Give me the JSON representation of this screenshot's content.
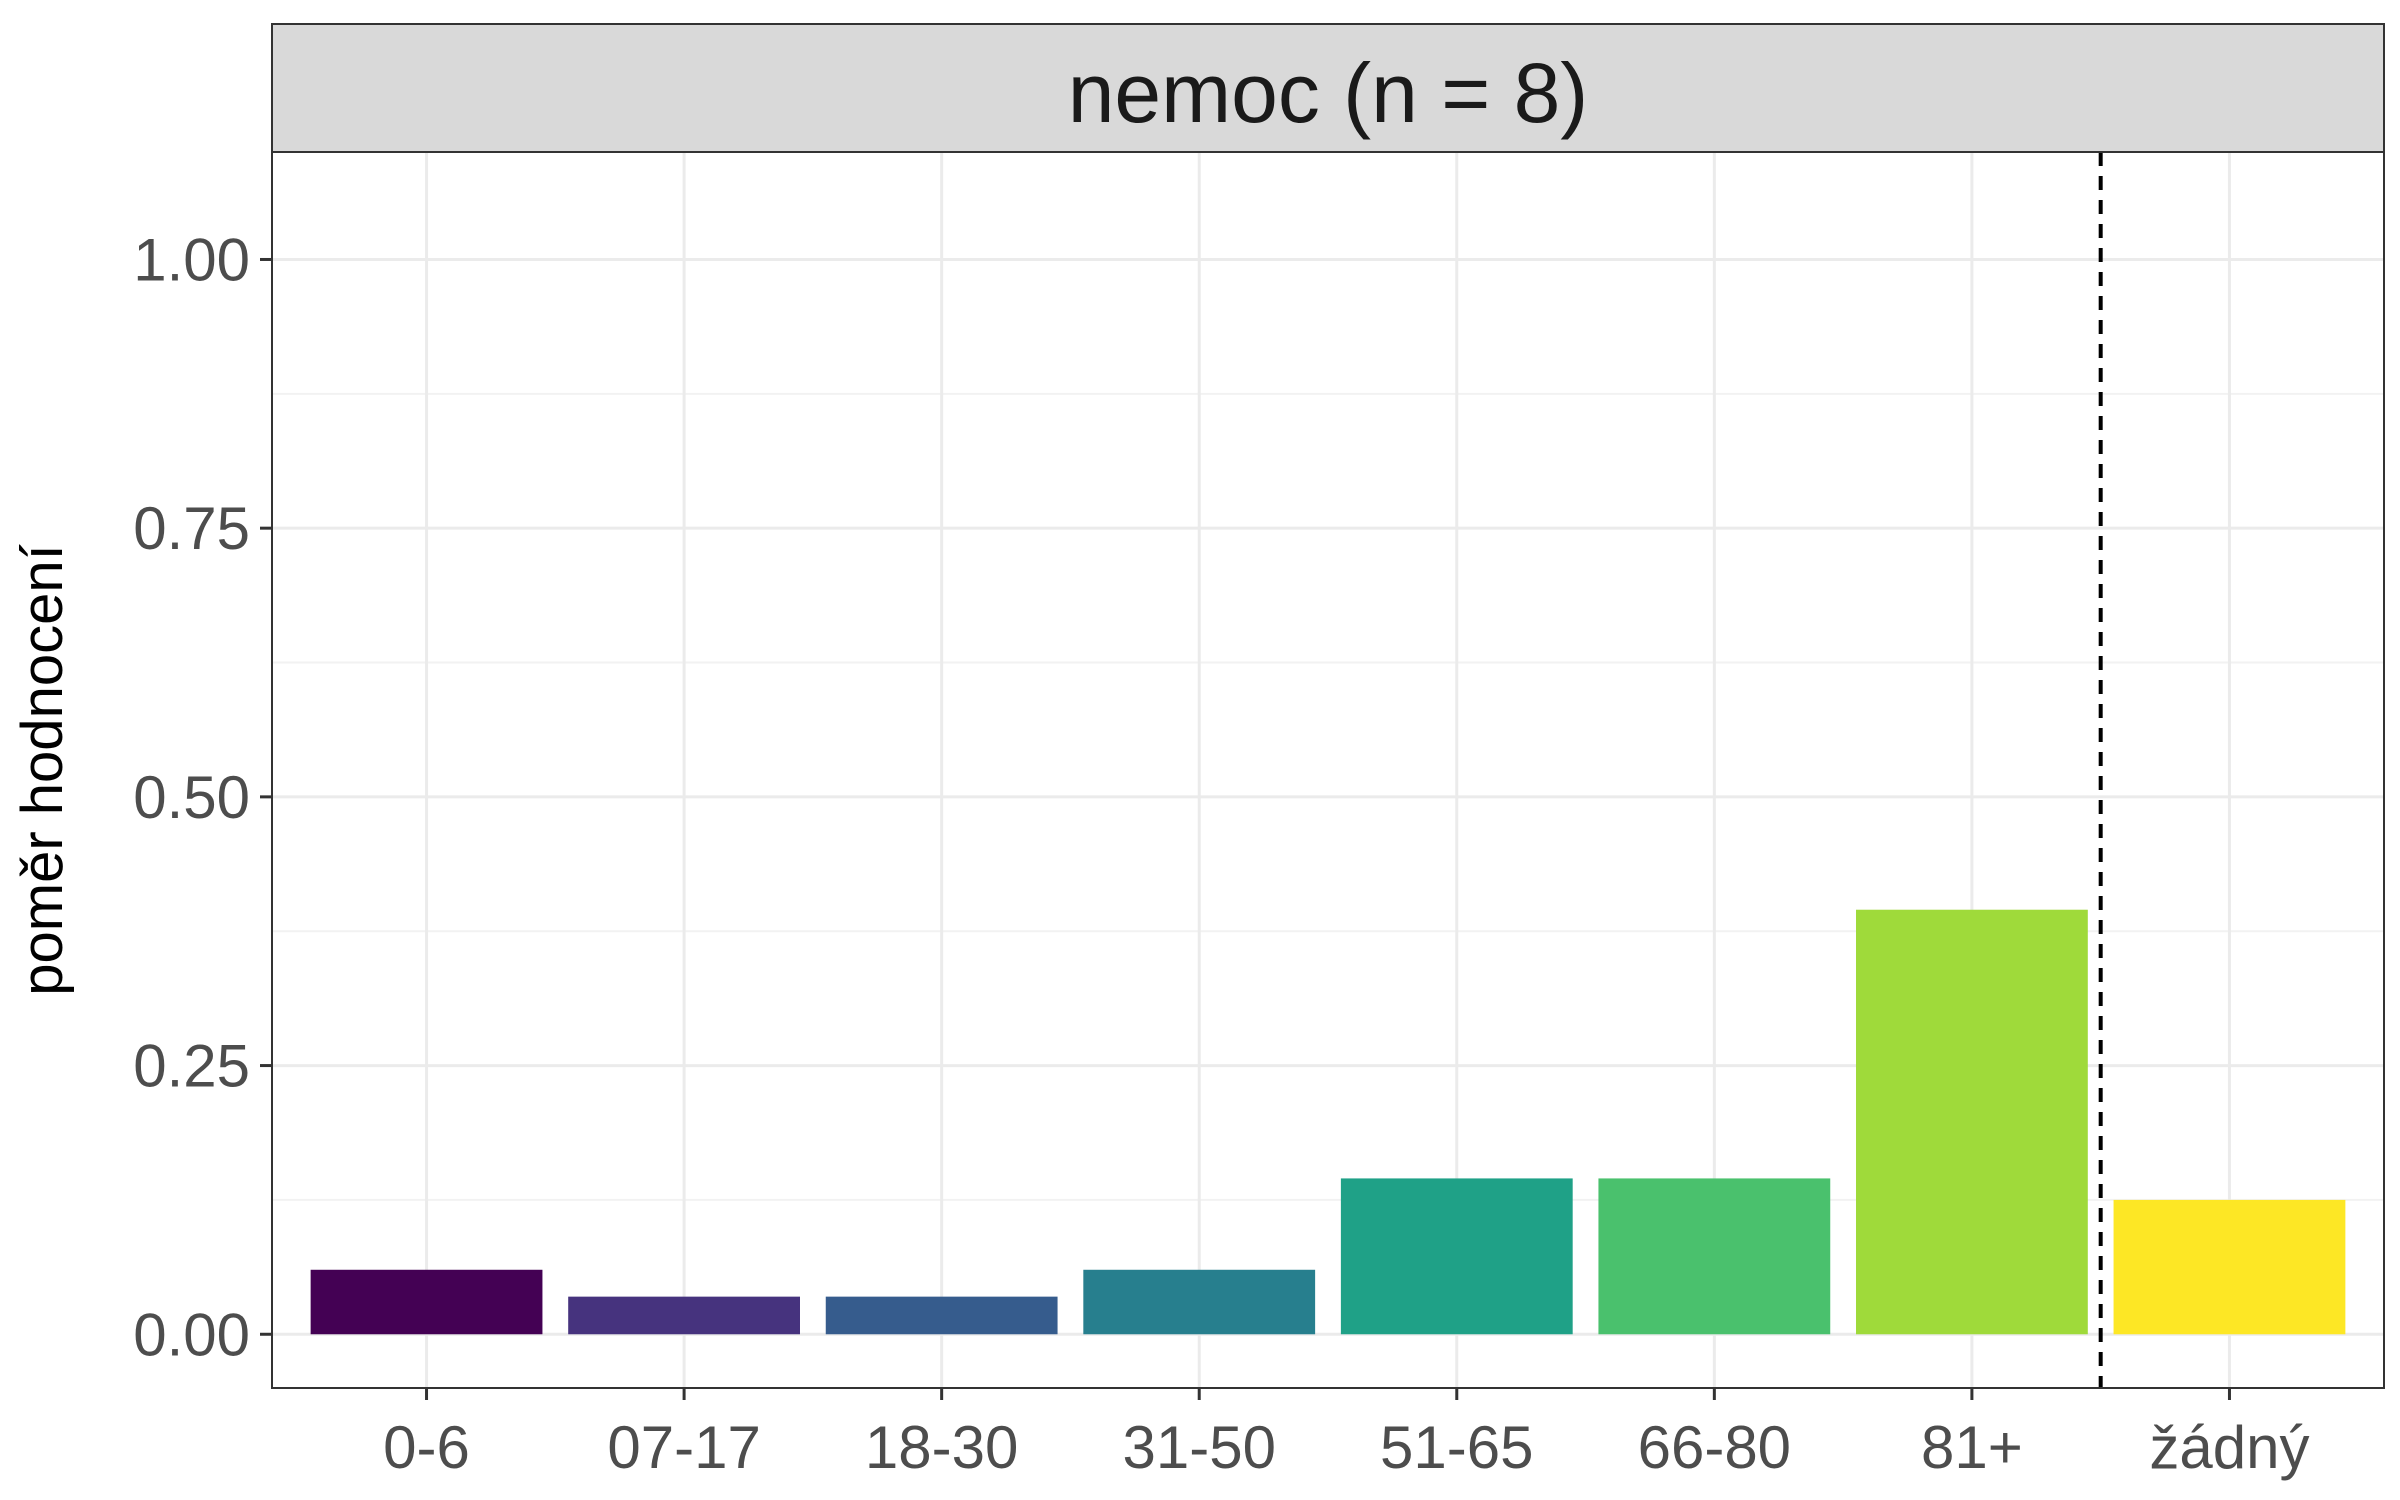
{
  "chart_data": {
    "type": "bar",
    "facet_title": "nemoc (n = 8)",
    "ylabel": "poměr hodnocení",
    "xlabel": "",
    "ylim": [
      -0.05,
      1.1
    ],
    "yticks": [
      0.0,
      0.25,
      0.5,
      0.75,
      1.0
    ],
    "ytick_labels": [
      "0.00",
      "0.25",
      "0.50",
      "0.75",
      "1.00"
    ],
    "categories": [
      "0-6",
      "07-17",
      "18-30",
      "31-50",
      "51-65",
      "66-80",
      "81+",
      "žádný"
    ],
    "values": [
      0.06,
      0.035,
      0.035,
      0.06,
      0.145,
      0.145,
      0.395,
      0.125
    ],
    "colors": [
      "#440154",
      "#46337E",
      "#365C8D",
      "#277F8E",
      "#1FA187",
      "#4AC16D",
      "#9FDA3A",
      "#FDE725"
    ],
    "separator": {
      "after_category": "81+",
      "style": "dashed",
      "color": "#000000"
    },
    "grid": true,
    "legend": "none"
  }
}
